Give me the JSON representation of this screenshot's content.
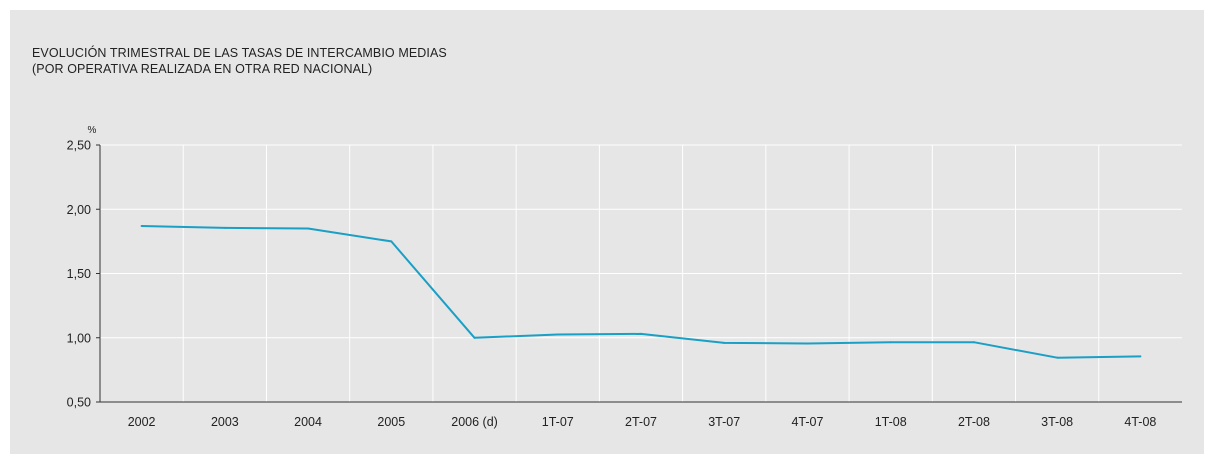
{
  "chart_data": {
    "type": "line",
    "title": "EVOLUCIÓN TRIMESTRAL DE LAS TASAS DE INTERCAMBIO MEDIAS",
    "subtitle": "(POR OPERATIVA REALIZADA EN OTRA RED NACIONAL)",
    "ylabel": "%",
    "xlabel": "",
    "ylim": [
      0.5,
      2.5
    ],
    "yticks": [
      "0,50",
      "1,00",
      "1,50",
      "2,00",
      "2,50"
    ],
    "categories": [
      "2002",
      "2003",
      "2004",
      "2005",
      "2006 (d)",
      "1T-07",
      "2T-07",
      "3T-07",
      "4T-07",
      "1T-08",
      "2T-08",
      "3T-08",
      "4T-08"
    ],
    "series": [
      {
        "values": [
          1.87,
          1.855,
          1.85,
          1.75,
          1.0,
          1.025,
          1.03,
          0.96,
          0.955,
          0.965,
          0.965,
          0.845,
          0.855
        ]
      }
    ],
    "grid": true,
    "colors": {
      "line": "#1a9fc5",
      "grid": "#ffffff",
      "axis": "#333333",
      "background": "#e6e6e6"
    }
  }
}
